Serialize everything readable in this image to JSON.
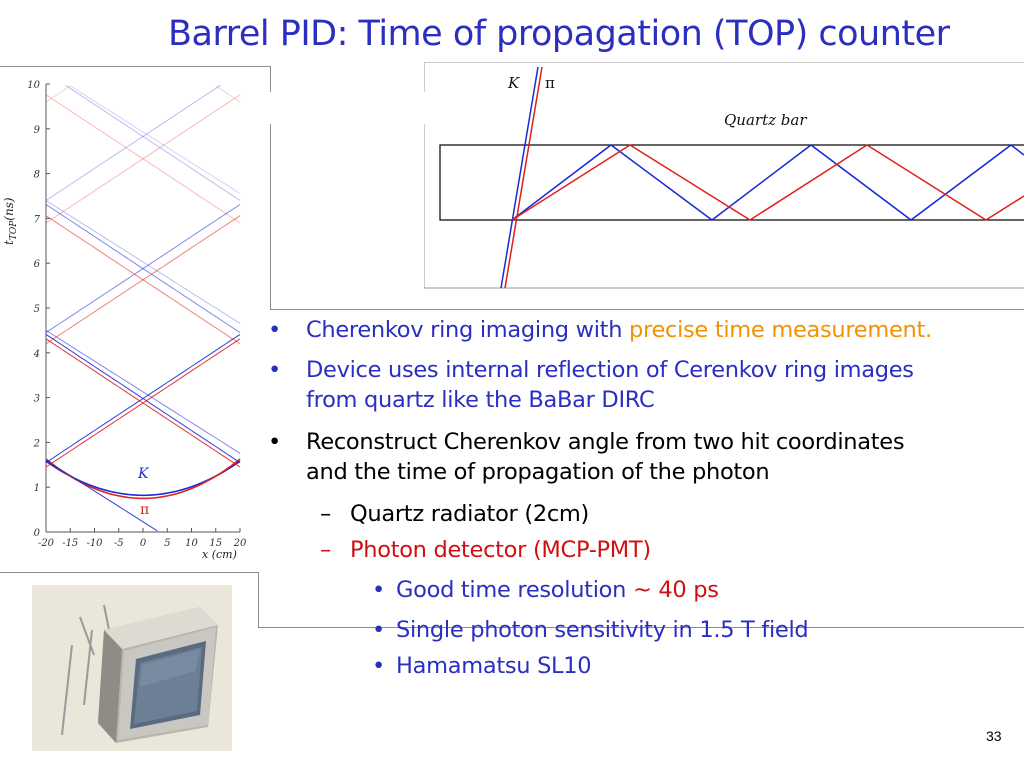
{
  "slide": {
    "title": "Barrel PID: Time of propagation (TOP) counter",
    "page_number": "33"
  },
  "plot": {
    "y_axis_label": "t",
    "y_axis_sub": "TOP",
    "y_axis_unit": "(ns)",
    "y_ticks": [
      "0",
      "1",
      "2",
      "3",
      "4",
      "5",
      "6",
      "7",
      "8",
      "9",
      "10"
    ],
    "x_ticks": [
      "-20",
      "-15",
      "-10",
      "-5",
      "0",
      "5",
      "10",
      "15",
      "20"
    ],
    "x_axis_label": "x (cm)",
    "label_k": "K",
    "label_pi": "π",
    "colors": {
      "k": "#1a2bd6",
      "pi": "#e0201a"
    }
  },
  "quartz_diagram": {
    "label_k": "K",
    "label_pi": "π",
    "bar_label": "Quartz bar"
  },
  "bullets": [
    {
      "segments": [
        {
          "text": "Cherenkov ring imaging with ",
          "color": "blue"
        },
        {
          "text": "precise time measurement.",
          "color": "orange"
        }
      ]
    },
    {
      "line1": "Device uses internal reflection of Cerenkov ring images",
      "line2": "from quartz like the BaBar DIRC"
    },
    {
      "line1": "Reconstruct Cherenkov angle from two hit coordinates",
      "line2": "and the time of propagation of the photon"
    }
  ],
  "sub_bullets": [
    {
      "dash": "–",
      "text": "Quartz radiator (2cm)"
    },
    {
      "dash": "–",
      "text": "Photon detector (MCP-PMT)"
    }
  ],
  "sub_sub_bullets": [
    {
      "segments": [
        {
          "text": "Good time resolution ",
          "color": "blue"
        },
        {
          "text": "~ 40 ps",
          "color": "red"
        }
      ]
    },
    {
      "text": "Single photon sensitivity in 1.5 T field"
    },
    {
      "text": "Hamamatsu SL10"
    }
  ],
  "bullet_glyph": "•",
  "sub_bullet_glyph": "•"
}
